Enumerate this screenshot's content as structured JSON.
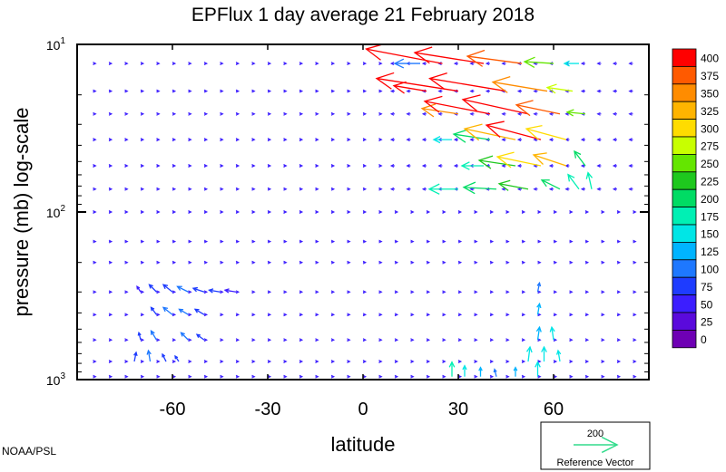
{
  "chart_data": {
    "type": "vector-field",
    "title": "EPFlux  1 day average  21 February 2018",
    "xlabel": "latitude",
    "ylabel": "pressure (mb)  log-scale",
    "xlim": [
      -90,
      90
    ],
    "ylim": [
      1000,
      10
    ],
    "y_scale": "log",
    "x_ticks": [
      -60,
      -30,
      0,
      30,
      60
    ],
    "x_tick_labels": [
      "-60",
      "-30",
      "0",
      "30",
      "60"
    ],
    "y_ticks": [
      10,
      100,
      1000
    ],
    "y_tick_labels": [
      {
        "base": "10",
        "exp": "1"
      },
      {
        "base": "10",
        "exp": "2"
      },
      {
        "base": "10",
        "exp": "3"
      }
    ],
    "colorbar": {
      "levels": [
        "400",
        "375",
        "350",
        "325",
        "300",
        "275",
        "250",
        "225",
        "200",
        "175",
        "150",
        "125",
        "100",
        "75",
        "50",
        "25",
        "0"
      ],
      "colors": [
        "#ff0000",
        "#ff5a00",
        "#ff8c00",
        "#ffb400",
        "#ffdc00",
        "#c8ff00",
        "#64e600",
        "#1ec81e",
        "#00dc64",
        "#00f0b4",
        "#00e6e6",
        "#00b4ff",
        "#1e78ff",
        "#1e3cff",
        "#3c1eff",
        "#5a0adc",
        "#6e00b4"
      ]
    },
    "reference_vector": {
      "value": "200",
      "label": "Reference Vector",
      "color": "#32dc8c"
    },
    "vectors": [
      {
        "lat": 20,
        "p": 10,
        "u": 40,
        "v": 9,
        "mag": 400
      },
      {
        "lat": 30,
        "p": 10,
        "u": 35,
        "v": 8,
        "mag": 400
      },
      {
        "lat": 40,
        "p": 10,
        "u": 35,
        "v": 8,
        "mag": 400
      },
      {
        "lat": 18,
        "p": 13,
        "u": 14,
        "v": 0,
        "mag": 100
      },
      {
        "lat": 25,
        "p": 13,
        "u": 42,
        "v": 8,
        "mag": 400
      },
      {
        "lat": 38,
        "p": 13,
        "u": 38,
        "v": 6,
        "mag": 400
      },
      {
        "lat": 50,
        "p": 13,
        "u": 30,
        "v": 4,
        "mag": 380
      },
      {
        "lat": 60,
        "p": 13,
        "u": 16,
        "v": 1,
        "mag": 250
      },
      {
        "lat": 68,
        "p": 13,
        "u": 8,
        "v": 0,
        "mag": 150
      },
      {
        "lat": 20,
        "p": 19,
        "u": 18,
        "v": 3,
        "mag": 400
      },
      {
        "lat": 30,
        "p": 19,
        "u": 45,
        "v": 7,
        "mag": 400
      },
      {
        "lat": 45,
        "p": 19,
        "u": 42,
        "v": 7,
        "mag": 400
      },
      {
        "lat": 58,
        "p": 19,
        "u": 30,
        "v": 5,
        "mag": 360
      },
      {
        "lat": 66,
        "p": 19,
        "u": 14,
        "v": 2,
        "mag": 280
      },
      {
        "lat": 30,
        "p": 26,
        "u": 20,
        "v": 3,
        "mag": 360
      },
      {
        "lat": 40,
        "p": 26,
        "u": 36,
        "v": 7,
        "mag": 400
      },
      {
        "lat": 52,
        "p": 26,
        "u": 36,
        "v": 8,
        "mag": 400
      },
      {
        "lat": 62,
        "p": 26,
        "u": 24,
        "v": 5,
        "mag": 380
      },
      {
        "lat": 70,
        "p": 26,
        "u": 10,
        "v": 1,
        "mag": 250
      },
      {
        "lat": 28,
        "p": 37,
        "u": 10,
        "v": 0,
        "mag": 150
      },
      {
        "lat": 40,
        "p": 37,
        "u": 20,
        "v": 3,
        "mag": 220
      },
      {
        "lat": 48,
        "p": 37,
        "u": 28,
        "v": 6,
        "mag": 330
      },
      {
        "lat": 56,
        "p": 37,
        "u": 30,
        "v": 8,
        "mag": 400
      },
      {
        "lat": 64,
        "p": 37,
        "u": 22,
        "v": 6,
        "mag": 300
      },
      {
        "lat": 38,
        "p": 53,
        "u": 12,
        "v": 0,
        "mag": 175
      },
      {
        "lat": 48,
        "p": 53,
        "u": 20,
        "v": 3,
        "mag": 225
      },
      {
        "lat": 56,
        "p": 53,
        "u": 24,
        "v": 5,
        "mag": 300
      },
      {
        "lat": 64,
        "p": 53,
        "u": 18,
        "v": 6,
        "mag": 325
      },
      {
        "lat": 70,
        "p": 53,
        "u": 6,
        "v": 8,
        "mag": 200
      },
      {
        "lat": 30,
        "p": 73,
        "u": 16,
        "v": 0,
        "mag": 175
      },
      {
        "lat": 42,
        "p": 73,
        "u": 18,
        "v": 1,
        "mag": 200
      },
      {
        "lat": 52,
        "p": 73,
        "u": 16,
        "v": 3,
        "mag": 225
      },
      {
        "lat": 62,
        "p": 73,
        "u": 10,
        "v": 5,
        "mag": 210
      },
      {
        "lat": 68,
        "p": 73,
        "u": 6,
        "v": 8,
        "mag": 190
      },
      {
        "lat": 72,
        "p": 73,
        "u": 2,
        "v": 9,
        "mag": 175
      },
      {
        "lat": -70,
        "p": 300,
        "u": 2,
        "v": 3,
        "mag": 60
      },
      {
        "lat": -65,
        "p": 300,
        "u": 4,
        "v": 4,
        "mag": 80
      },
      {
        "lat": -60,
        "p": 300,
        "u": 5,
        "v": 4,
        "mag": 95
      },
      {
        "lat": -55,
        "p": 300,
        "u": 6,
        "v": 3,
        "mag": 100
      },
      {
        "lat": -50,
        "p": 300,
        "u": 6,
        "v": 2,
        "mag": 90
      },
      {
        "lat": -45,
        "p": 300,
        "u": 6,
        "v": 1,
        "mag": 80
      },
      {
        "lat": -40,
        "p": 300,
        "u": 6,
        "v": 1,
        "mag": 70
      },
      {
        "lat": 55,
        "p": 300,
        "u": -1,
        "v": 5,
        "mag": 110
      },
      {
        "lat": -65,
        "p": 410,
        "u": 3,
        "v": 4,
        "mag": 85
      },
      {
        "lat": -60,
        "p": 410,
        "u": 5,
        "v": 4,
        "mag": 100
      },
      {
        "lat": -55,
        "p": 410,
        "u": 5,
        "v": 3,
        "mag": 100
      },
      {
        "lat": -50,
        "p": 410,
        "u": 5,
        "v": 3,
        "mag": 95
      },
      {
        "lat": 55,
        "p": 410,
        "u": -1,
        "v": 6,
        "mag": 130
      },
      {
        "lat": -70,
        "p": 580,
        "u": 1,
        "v": 4,
        "mag": 85
      },
      {
        "lat": -65,
        "p": 580,
        "u": 3,
        "v": 5,
        "mag": 100
      },
      {
        "lat": -55,
        "p": 580,
        "u": 4,
        "v": 4,
        "mag": 100
      },
      {
        "lat": -50,
        "p": 580,
        "u": 4,
        "v": 3,
        "mag": 90
      },
      {
        "lat": 55,
        "p": 580,
        "u": -1,
        "v": 7,
        "mag": 140
      },
      {
        "lat": 60,
        "p": 580,
        "u": 1,
        "v": 7,
        "mag": 150
      },
      {
        "lat": -72,
        "p": 780,
        "u": -1,
        "v": 5,
        "mag": 95
      },
      {
        "lat": -67,
        "p": 780,
        "u": 1,
        "v": 6,
        "mag": 110
      },
      {
        "lat": -62,
        "p": 780,
        "u": 2,
        "v": 4,
        "mag": 90
      },
      {
        "lat": -58,
        "p": 780,
        "u": 2,
        "v": 3,
        "mag": 80
      },
      {
        "lat": 52,
        "p": 780,
        "u": -1,
        "v": 8,
        "mag": 160
      },
      {
        "lat": 57,
        "p": 780,
        "u": 0,
        "v": 8,
        "mag": 170
      },
      {
        "lat": 62,
        "p": 780,
        "u": 1,
        "v": 6,
        "mag": 150
      },
      {
        "lat": 28,
        "p": 960,
        "u": 0,
        "v": 8,
        "mag": 180
      },
      {
        "lat": 32,
        "p": 960,
        "u": 0,
        "v": 6,
        "mag": 150
      },
      {
        "lat": 37,
        "p": 960,
        "u": 0,
        "v": 5,
        "mag": 130
      },
      {
        "lat": 42,
        "p": 960,
        "u": 1,
        "v": 4,
        "mag": 110
      },
      {
        "lat": 48,
        "p": 960,
        "u": 0,
        "v": 5,
        "mag": 140
      },
      {
        "lat": 55,
        "p": 960,
        "u": 0,
        "v": 8,
        "mag": 170
      }
    ]
  },
  "credit": "NOAA/PSL"
}
